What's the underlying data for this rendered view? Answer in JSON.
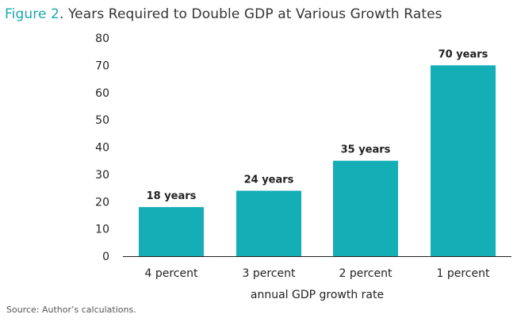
{
  "figure": {
    "title_prefix": "Figure 2",
    "title_rest": ". Years Required to Double GDP at Various Growth Rates",
    "source": "Source: Author’s calculations."
  },
  "colors": {
    "accent": "#1aa6b0",
    "bar": "#13aeb6",
    "text": "#222222"
  },
  "chart_data": {
    "type": "bar",
    "categories": [
      "4 percent",
      "3 percent",
      "2 percent",
      "1 percent"
    ],
    "values": [
      18,
      24,
      35,
      70
    ],
    "data_labels": [
      "18 years",
      "24 years",
      "35 years",
      "70 years"
    ],
    "title": "Figure 2. Years Required to Double GDP at Various Growth Rates",
    "xlabel": "annual GDP growth rate",
    "ylabel": "",
    "ylim": [
      0,
      80
    ],
    "yticks": [
      0,
      10,
      20,
      30,
      40,
      50,
      60,
      70,
      80
    ],
    "grid": false,
    "legend": "none"
  }
}
